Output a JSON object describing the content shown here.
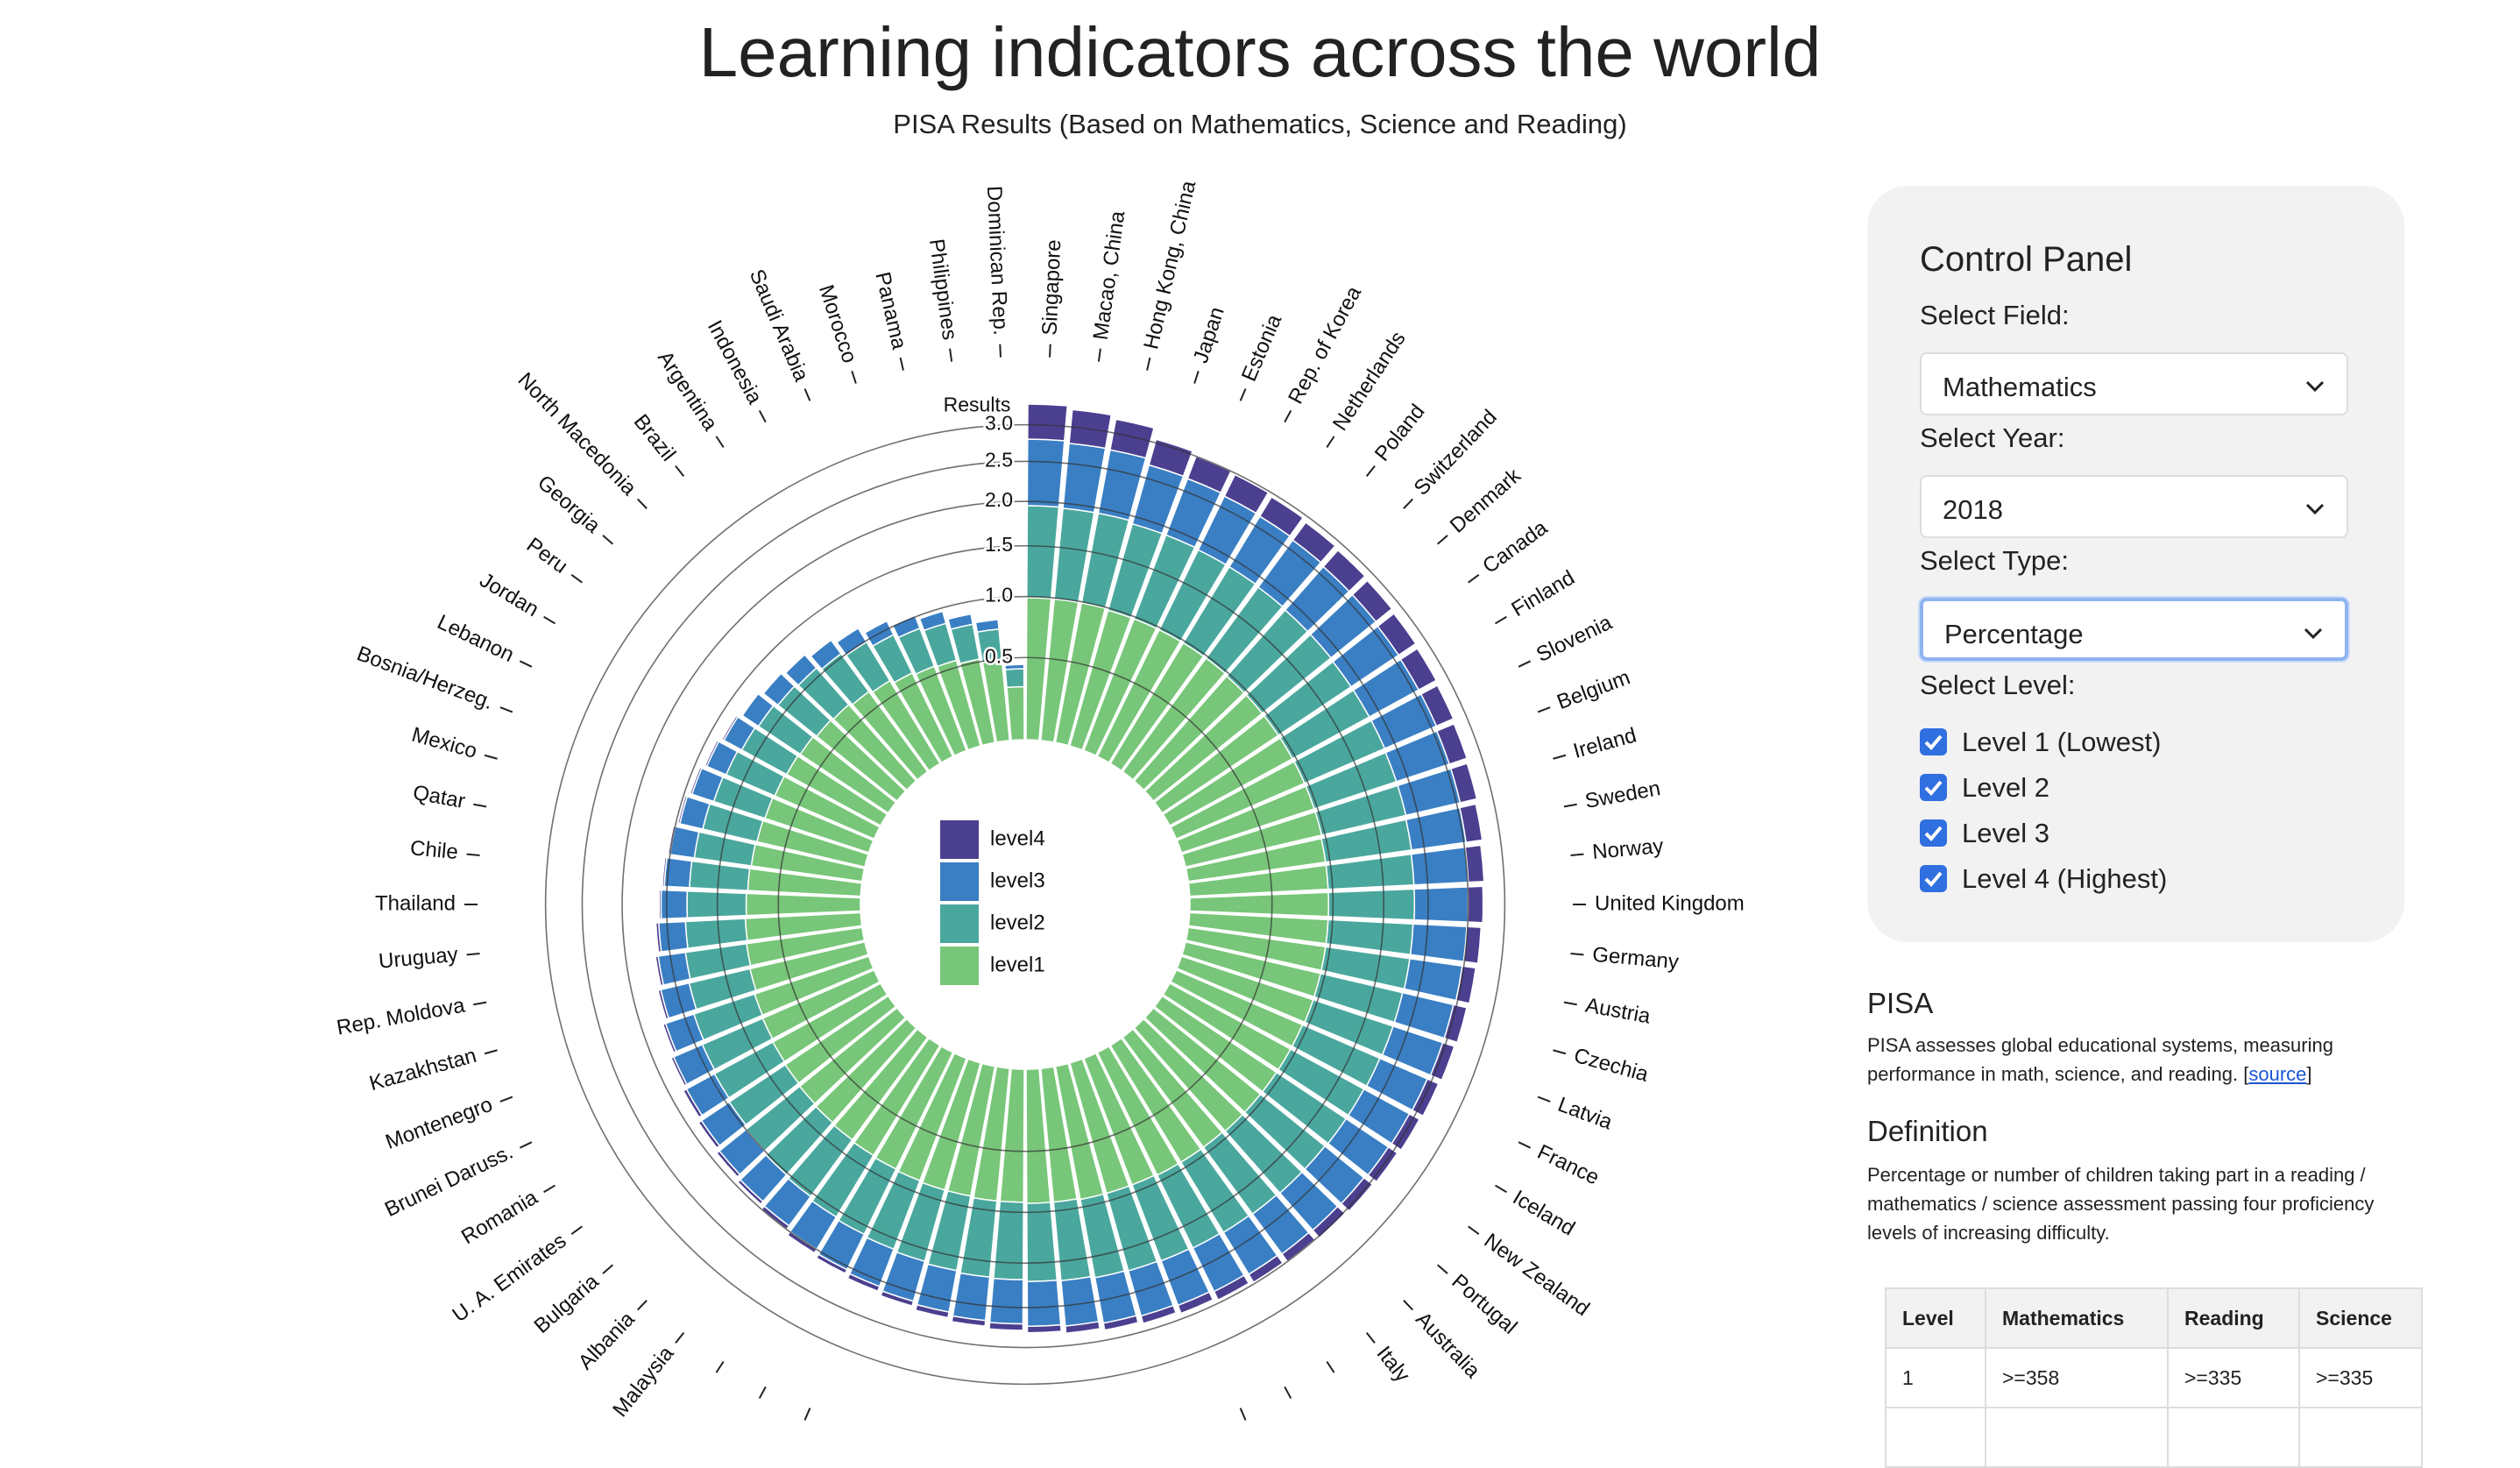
{
  "header": {
    "title": "Learning indicators across the world",
    "subtitle": "PISA Results (Based on Mathematics, Science and Reading)"
  },
  "chart_data": {
    "type": "radial",
    "y_label": "Results",
    "categories": [
      "Singapore",
      "Macao, China",
      "Hong Kong, China",
      "Japan",
      "Estonia",
      "Rep. of Korea",
      "Netherlands",
      "Poland",
      "Switzerland",
      "Denmark",
      "Canada",
      "Finland",
      "Slovenia",
      "Belgium",
      "Ireland",
      "Sweden",
      "Norway",
      "United Kingdom",
      "Germany",
      "Austria",
      "Czechia",
      "Latvia",
      "France",
      "Iceland",
      "New Zealand",
      "Portugal",
      "Australia",
      "Italy",
      null,
      null,
      null,
      null,
      null,
      null,
      null,
      null,
      null,
      null,
      null,
      null,
      null,
      null,
      "Malaysia",
      "Albania",
      "Bulgaria",
      "U. A. Emirates",
      "Romania",
      "Brunei Daruss.",
      "Montenegro",
      "Kazakhstan",
      "Rep. Moldova",
      "Uruguay",
      "Thailand",
      "Chile",
      "Qatar",
      "Mexico",
      "Bosnia/Herzeg.",
      "Lebanon",
      "Jordan",
      "Peru",
      "Georgia",
      "North Macedonia",
      "Brazil",
      "Argentina",
      "Indonesia",
      "Saudi Arabia",
      "Morocco",
      "Panama",
      "Philippines",
      "Dominican Rep."
    ],
    "series": [
      {
        "name": "level1",
        "color": "#78c679",
        "values": [
          0.99,
          0.99,
          0.99,
          0.98,
          0.98,
          0.98,
          0.98,
          0.98,
          0.97,
          0.97,
          0.97,
          0.97,
          0.97,
          0.97,
          0.97,
          0.96,
          0.96,
          0.96,
          0.96,
          0.96,
          0.96,
          0.96,
          0.95,
          0.95,
          0.95,
          0.95,
          0.95,
          0.94,
          0.94,
          0.94,
          0.93,
          0.93,
          0.93,
          0.92,
          0.92,
          0.91,
          0.91,
          0.9,
          0.9,
          0.89,
          0.88,
          0.87,
          0.86,
          0.85,
          0.84,
          0.83,
          0.82,
          0.81,
          0.8,
          0.78,
          0.77,
          0.76,
          0.75,
          0.74,
          0.73,
          0.72,
          0.71,
          0.7,
          0.69,
          0.68,
          0.66,
          0.65,
          0.63,
          0.61,
          0.58,
          0.56,
          0.55,
          0.52,
          0.49,
          0.3
        ]
      },
      {
        "name": "level2",
        "color": "#4aa79e",
        "values": [
          0.96,
          0.95,
          0.95,
          0.93,
          0.93,
          0.92,
          0.92,
          0.91,
          0.91,
          0.91,
          0.9,
          0.9,
          0.9,
          0.89,
          0.89,
          0.89,
          0.88,
          0.88,
          0.87,
          0.87,
          0.86,
          0.86,
          0.86,
          0.85,
          0.85,
          0.84,
          0.84,
          0.84,
          0.83,
          0.82,
          0.82,
          0.81,
          0.8,
          0.79,
          0.78,
          0.77,
          0.76,
          0.75,
          0.73,
          0.72,
          0.71,
          0.7,
          0.68,
          0.67,
          0.66,
          0.64,
          0.63,
          0.62,
          0.6,
          0.58,
          0.57,
          0.55,
          0.54,
          0.53,
          0.52,
          0.5,
          0.48,
          0.47,
          0.45,
          0.44,
          0.43,
          0.42,
          0.4,
          0.38,
          0.35,
          0.33,
          0.31,
          0.28,
          0.24,
          0.12
        ]
      },
      {
        "name": "level3",
        "color": "#3a7fc4",
        "values": [
          0.85,
          0.83,
          0.82,
          0.77,
          0.76,
          0.75,
          0.74,
          0.73,
          0.72,
          0.72,
          0.71,
          0.7,
          0.7,
          0.69,
          0.69,
          0.68,
          0.67,
          0.66,
          0.66,
          0.65,
          0.64,
          0.64,
          0.63,
          0.63,
          0.62,
          0.61,
          0.6,
          0.6,
          0.59,
          0.58,
          0.57,
          0.56,
          0.55,
          0.54,
          0.53,
          0.52,
          0.51,
          0.49,
          0.48,
          0.46,
          0.45,
          0.43,
          0.41,
          0.4,
          0.38,
          0.37,
          0.35,
          0.34,
          0.32,
          0.31,
          0.29,
          0.28,
          0.27,
          0.26,
          0.25,
          0.24,
          0.23,
          0.21,
          0.2,
          0.19,
          0.18,
          0.17,
          0.16,
          0.15,
          0.14,
          0.12,
          0.11,
          0.09,
          0.08,
          0.03
        ]
      },
      {
        "name": "level4",
        "color": "#4b3f8f",
        "values": [
          0.5,
          0.48,
          0.44,
          0.37,
          0.33,
          0.33,
          0.31,
          0.3,
          0.3,
          0.28,
          0.28,
          0.27,
          0.25,
          0.25,
          0.23,
          0.22,
          0.21,
          0.2,
          0.19,
          0.18,
          0.18,
          0.16,
          0.16,
          0.15,
          0.14,
          0.14,
          0.13,
          0.12,
          0.12,
          0.12,
          0.11,
          0.1,
          0.09,
          0.09,
          0.08,
          0.08,
          0.07,
          0.07,
          0.06,
          0.06,
          0.05,
          0.05,
          0.05,
          0.04,
          0.04,
          0.04,
          0.04,
          0.03,
          0.03,
          0.03,
          0.03,
          0.03,
          0.02,
          0.02,
          0.02,
          0.02,
          0.02,
          0.02,
          0.02,
          0.01,
          0.01,
          0.01,
          0.01,
          0.01,
          0.01,
          0.01,
          0.01,
          0.01,
          0.01,
          0
        ]
      }
    ],
    "ylim": [
      0,
      3.3
    ],
    "yticks": [
      0.5,
      {
        "value": 1,
        "label": "1.0"
      },
      1.5,
      {
        "value": 2,
        "label": "2.0"
      },
      2.5,
      {
        "value": 3,
        "label": "3.0"
      }
    ],
    "grid": true
  },
  "control_panel": {
    "title": "Control Panel",
    "field_label": "Select Field:",
    "field": "Mathematics",
    "year_label": "Select Year:",
    "year": "2018",
    "type_label": "Select Type:",
    "type": "Percentage",
    "level_label": "Select Level:",
    "levels": [
      "Level 1 (Lowest)",
      "Level 2",
      "Level 3",
      "Level 4 (Highest)"
    ]
  },
  "pisa": {
    "heading": "PISA",
    "text_before": "PISA assesses global educational systems, measuring performance in math, science, and reading. [",
    "link": "source",
    "text_after": "]"
  },
  "definition": {
    "heading": "Definition",
    "text": "Percentage or number of children taking part in a reading / mathematics / science assessment passing four proficiency levels of increasing difficulty."
  },
  "table": {
    "header": [
      "Level",
      "Mathematics",
      "Reading",
      "Science"
    ],
    "rows": [
      [
        1,
        ">=358",
        ">=335",
        ">=335"
      ]
    ]
  }
}
